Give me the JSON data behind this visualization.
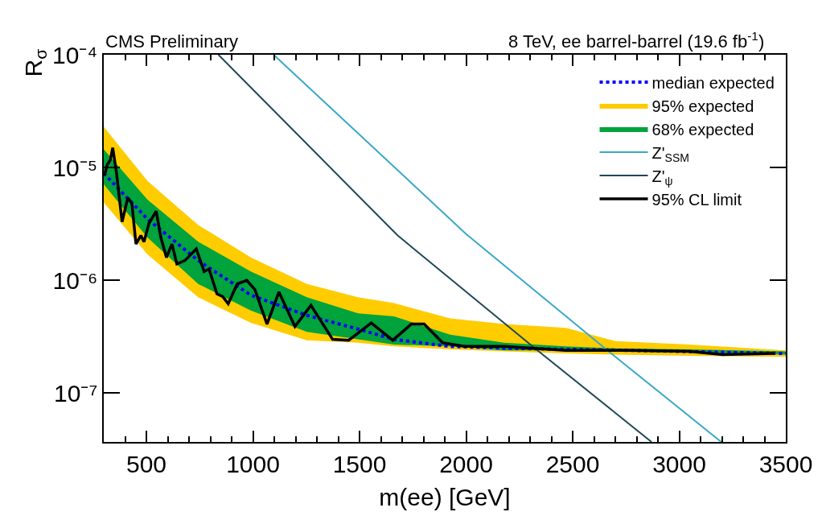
{
  "chart_data": {
    "type": "line",
    "title": "CMS Preliminary",
    "subtitle": "8 TeV, ee barrel-barrel (19.6 fb$^{-1}$)",
    "xlabel": "m(ee) [GeV]",
    "ylabel": "R$_{σ}$",
    "log": "y",
    "xlim": [
      300,
      3500
    ],
    "xticks": [
      500,
      1000,
      1500,
      2000,
      2500,
      3000,
      3500
    ],
    "ylim": [
      3.7e-08,
      0.0001
    ],
    "yticks": [
      {
        "value": 1e-07,
        "label": "10⁻⁷"
      },
      {
        "value": 1e-06,
        "label": "10⁻⁶"
      },
      {
        "value": 1e-05,
        "label": "10⁻⁵"
      },
      {
        "value": 0.0001,
        "label": "10⁻⁴"
      }
    ],
    "legend": "top right",
    "series": [
      {
        "name": "median expected",
        "type": "line",
        "line_style": "dotted",
        "color": "#0000ff",
        "x": [
          300,
          505,
          743,
          990,
          1253,
          1493,
          1662,
          1925,
          2200,
          2757,
          3500
        ],
        "values": [
          8.9e-06,
          3.5e-06,
          1.5e-06,
          7.4e-07,
          4.9e-07,
          3.7e-07,
          3e-07,
          2.6e-07,
          2.5e-07,
          2.4e-07,
          2.25e-07
        ]
      },
      {
        "name": "95% expected",
        "type": "area",
        "color": "#ffcc00",
        "x": [
          300,
          505,
          743,
          990,
          1253,
          1493,
          1662,
          1925,
          2179,
          2468,
          2700,
          3046,
          3500
        ],
        "values": [
          null,
          null,
          null,
          null,
          null,
          null,
          null,
          null,
          null,
          null,
          null,
          null,
          null
        ],
        "lower": [
          4.9e-06,
          1.7e-06,
          7.1e-07,
          4.2e-07,
          2.95e-07,
          2.8e-07,
          2.6e-07,
          2.45e-07,
          2.35e-07,
          2.25e-07,
          2.2e-07,
          2.15e-07,
          2.1e-07
        ],
        "upper": [
          2.3e-05,
          7.6e-06,
          3.1e-06,
          1.6e-06,
          9.3e-07,
          7.1e-07,
          6.3e-07,
          4.6e-07,
          4.1e-07,
          3.8e-07,
          2.9e-07,
          2.7e-07,
          2.4e-07
        ]
      },
      {
        "name": "68% expected",
        "type": "area",
        "color": "#00a33c",
        "x": [
          300,
          505,
          743,
          990,
          1253,
          1493,
          1662,
          1925,
          2179,
          2468,
          2700,
          3046,
          3500
        ],
        "values": [
          null,
          null,
          null,
          null,
          null,
          null,
          null,
          null,
          null,
          null,
          null,
          null,
          null
        ],
        "lower": [
          7.1e-06,
          2.4e-06,
          9.3e-07,
          5.4e-07,
          3.5e-07,
          3e-07,
          2.7e-07,
          2.6e-07,
          2.4e-07,
          2.4e-07,
          2.35e-07,
          2.3e-07,
          2.2e-07
        ],
        "upper": [
          1.45e-05,
          5.2e-06,
          2.2e-06,
          1.2e-06,
          7.1e-07,
          5.1e-07,
          4.8e-07,
          3.3e-07,
          2.8e-07,
          2.6e-07,
          2.5e-07,
          2.45e-07,
          2.35e-07
        ]
      },
      {
        "name": "Z'$_{SSM}$",
        "type": "line",
        "line_style": "solid",
        "color": "#3aa8c8",
        "x": [
          1097,
          1998,
          2663,
          3197
        ],
        "values": [
          0.0001,
          2.6e-06,
          2.4e-07,
          3.7e-08
        ]
      },
      {
        "name": "Z'$_{ψ}$",
        "type": "line",
        "line_style": "solid",
        "color": "#1e4757",
        "x": [
          838,
          1679,
          2329,
          2870
        ],
        "values": [
          0.0001,
          2.5e-06,
          2.45e-07,
          3.7e-08
        ]
      },
      {
        "name": "95% CL limit",
        "type": "line",
        "line_style": "solid",
        "color": "#000000",
        "x": [
          304,
          315,
          331,
          342,
          360,
          386,
          413,
          432,
          451,
          474,
          489,
          512,
          546,
          568,
          594,
          620,
          643,
          681,
          734,
          771,
          794,
          831,
          858,
          884,
          926,
          971,
          1009,
          1066,
          1122,
          1197,
          1272,
          1374,
          1449,
          1555,
          1656,
          1743,
          1803,
          1890,
          1991,
          2179,
          2468,
          2757,
          3046,
          3204,
          3448
        ],
        "values": [
          8.5e-06,
          1.05e-05,
          1.17e-05,
          1.5e-05,
          8.9e-06,
          3.3e-06,
          5.4e-06,
          4.8e-06,
          2.1e-06,
          2.5e-06,
          2.2e-06,
          3.2e-06,
          4.1e-06,
          2.4e-06,
          1.6e-06,
          2.1e-06,
          1.4e-06,
          1.5e-06,
          1.9e-06,
          1.2e-06,
          1.26e-06,
          7.6e-07,
          7.2e-07,
          6.2e-07,
          9.3e-07,
          1e-06,
          8.3e-07,
          4.1e-07,
          7.9e-07,
          3.9e-07,
          6e-07,
          3e-07,
          2.95e-07,
          4.2e-07,
          2.95e-07,
          4.1e-07,
          4.1e-07,
          2.8e-07,
          2.6e-07,
          2.6e-07,
          2.4e-07,
          2.4e-07,
          2.35e-07,
          2.2e-07,
          2.25e-07
        ]
      }
    ]
  }
}
